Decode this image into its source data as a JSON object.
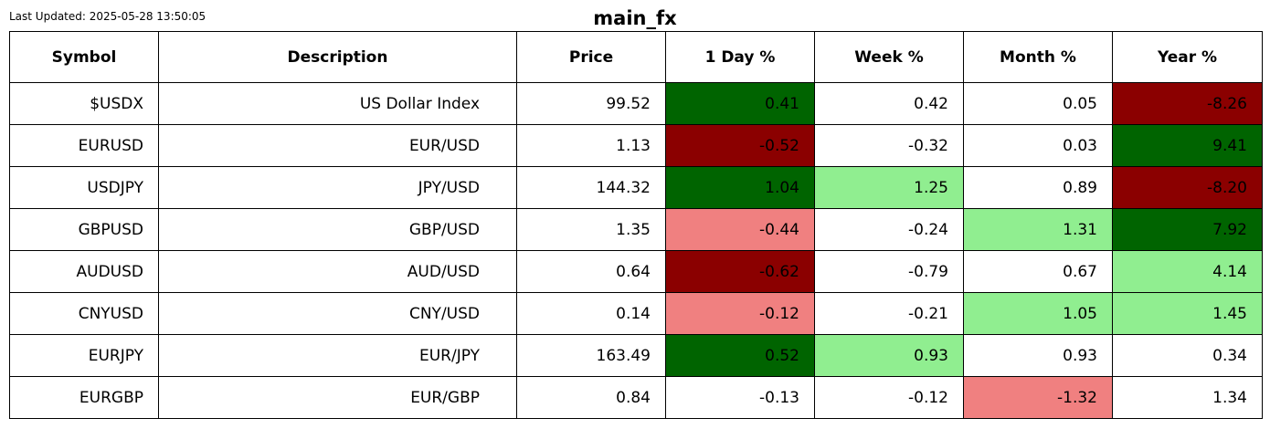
{
  "last_updated": "Last Updated: 2025-05-28 13:50:05",
  "title": "main_fx",
  "colors": {
    "strong_positive": "#006400",
    "strong_negative": "#8b0000",
    "mild_positive": "#90ee90",
    "mild_negative": "#f08080",
    "neutral": "#ffffff"
  },
  "chart_data": {
    "type": "table",
    "title": "main_fx",
    "columns": [
      "Symbol",
      "Description",
      "Price",
      "1 Day %",
      "Week %",
      "Month %",
      "Year %"
    ],
    "rows": [
      {
        "cells": [
          "$USDX",
          "US Dollar Index",
          "99.52",
          "0.41",
          "0.42",
          "0.05",
          "-8.26"
        ],
        "colors": [
          "neutral",
          "neutral",
          "neutral",
          "strong_positive",
          "neutral",
          "neutral",
          "strong_negative"
        ]
      },
      {
        "cells": [
          "EURUSD",
          "EUR/USD",
          "1.13",
          "-0.52",
          "-0.32",
          "0.03",
          "9.41"
        ],
        "colors": [
          "neutral",
          "neutral",
          "neutral",
          "strong_negative",
          "neutral",
          "neutral",
          "strong_positive"
        ]
      },
      {
        "cells": [
          "USDJPY",
          "JPY/USD",
          "144.32",
          "1.04",
          "1.25",
          "0.89",
          "-8.20"
        ],
        "colors": [
          "neutral",
          "neutral",
          "neutral",
          "strong_positive",
          "mild_positive",
          "neutral",
          "strong_negative"
        ]
      },
      {
        "cells": [
          "GBPUSD",
          "GBP/USD",
          "1.35",
          "-0.44",
          "-0.24",
          "1.31",
          "7.92"
        ],
        "colors": [
          "neutral",
          "neutral",
          "neutral",
          "mild_negative",
          "neutral",
          "mild_positive",
          "strong_positive"
        ]
      },
      {
        "cells": [
          "AUDUSD",
          "AUD/USD",
          "0.64",
          "-0.62",
          "-0.79",
          "0.67",
          "4.14"
        ],
        "colors": [
          "neutral",
          "neutral",
          "neutral",
          "strong_negative",
          "neutral",
          "neutral",
          "mild_positive"
        ]
      },
      {
        "cells": [
          "CNYUSD",
          "CNY/USD",
          "0.14",
          "-0.12",
          "-0.21",
          "1.05",
          "1.45"
        ],
        "colors": [
          "neutral",
          "neutral",
          "neutral",
          "mild_negative",
          "neutral",
          "mild_positive",
          "mild_positive"
        ]
      },
      {
        "cells": [
          "EURJPY",
          "EUR/JPY",
          "163.49",
          "0.52",
          "0.93",
          "0.93",
          "0.34"
        ],
        "colors": [
          "neutral",
          "neutral",
          "neutral",
          "strong_positive",
          "mild_positive",
          "neutral",
          "neutral"
        ]
      },
      {
        "cells": [
          "EURGBP",
          "EUR/GBP",
          "0.84",
          "-0.13",
          "-0.12",
          "-1.32",
          "1.34"
        ],
        "colors": [
          "neutral",
          "neutral",
          "neutral",
          "neutral",
          "neutral",
          "mild_negative",
          "neutral"
        ]
      }
    ]
  }
}
